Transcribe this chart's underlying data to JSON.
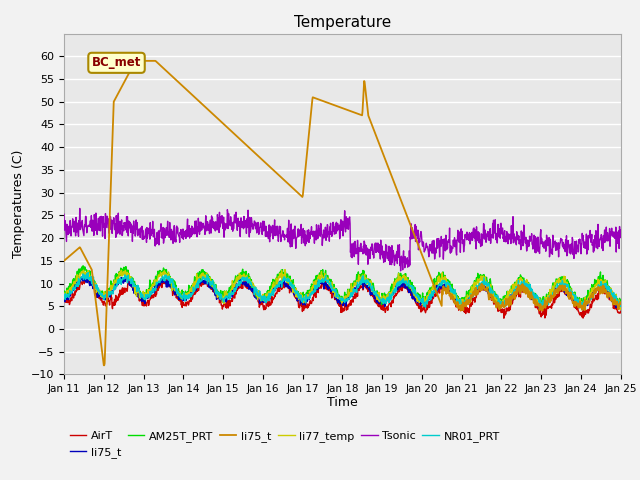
{
  "title": "Temperature",
  "xlabel": "Time",
  "ylabel": "Temperatures (C)",
  "ylim": [
    -10,
    65
  ],
  "yticks": [
    -10,
    -5,
    0,
    5,
    10,
    15,
    20,
    25,
    30,
    35,
    40,
    45,
    50,
    55,
    60
  ],
  "xlim": [
    0,
    14
  ],
  "xtick_labels": [
    "Jan 11",
    "Jan 12",
    "Jan 13",
    "Jan 14",
    "Jan 15",
    "Jan 16",
    "Jan 17",
    "Jan 18",
    "Jan 19",
    "Jan 20",
    "Jan 21",
    "Jan 22",
    "Jan 23",
    "Jan 24",
    "Jan 25"
  ],
  "bg_color": "#e8e8e8",
  "fig_color": "#f2f2f2",
  "grid_color": "#ffffff",
  "series_colors": {
    "AirT": "#cc0000",
    "li75_t_blue": "#0000bb",
    "AM25T_PRT": "#00dd00",
    "li75_t_orange": "#cc8800",
    "li77_temp": "#cccc00",
    "Tsonic": "#9900bb",
    "NR01_PRT": "#00cccc"
  },
  "BC_met_label": "BC_met",
  "annotation_box_color": "#ffffcc",
  "annotation_border_color": "#aa8800",
  "annotation_text_color": "#880000",
  "legend_labels": [
    "AirT",
    "li75_t",
    "AM25T_PRT",
    "li75_t",
    "li77_temp",
    "Tsonic",
    "NR01_PRT"
  ]
}
